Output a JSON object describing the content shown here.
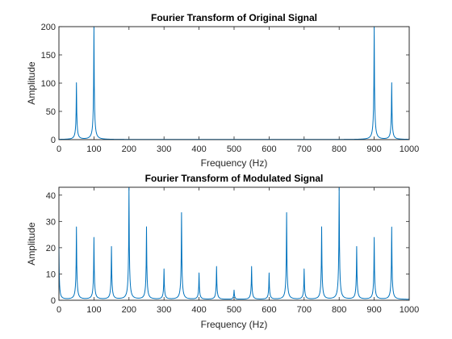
{
  "chart_data": [
    {
      "type": "line",
      "title": "Fourier Transform of Original Signal",
      "xlabel": "Frequency (Hz)",
      "ylabel": "Amplitude",
      "xlim": [
        0,
        1000
      ],
      "ylim": [
        0,
        200
      ],
      "xticks": [
        0,
        100,
        200,
        300,
        400,
        500,
        600,
        700,
        800,
        900,
        1000
      ],
      "yticks": [
        0,
        50,
        100,
        150,
        200
      ],
      "grid": false,
      "color": "#0072BD",
      "peaks": [
        {
          "x": 50,
          "y": 100
        },
        {
          "x": 100,
          "y": 200
        },
        {
          "x": 900,
          "y": 200
        },
        {
          "x": 950,
          "y": 100
        }
      ]
    },
    {
      "type": "line",
      "title": "Fourier Transform of Modulated Signal",
      "xlabel": "Frequency (Hz)",
      "ylabel": "Amplitude",
      "xlim": [
        0,
        1000
      ],
      "ylim": [
        0,
        43
      ],
      "xticks": [
        0,
        100,
        200,
        300,
        400,
        500,
        600,
        700,
        800,
        900,
        1000
      ],
      "yticks": [
        0,
        10,
        20,
        30,
        40
      ],
      "grid": false,
      "color": "#0072BD",
      "peaks": [
        {
          "x": 0,
          "y": 20
        },
        {
          "x": 50,
          "y": 27.5
        },
        {
          "x": 100,
          "y": 23.5
        },
        {
          "x": 150,
          "y": 20
        },
        {
          "x": 200,
          "y": 43
        },
        {
          "x": 250,
          "y": 27.5
        },
        {
          "x": 300,
          "y": 11.5
        },
        {
          "x": 350,
          "y": 33
        },
        {
          "x": 400,
          "y": 10
        },
        {
          "x": 450,
          "y": 12.5
        },
        {
          "x": 500,
          "y": 3.5
        },
        {
          "x": 550,
          "y": 12.5
        },
        {
          "x": 600,
          "y": 10
        },
        {
          "x": 650,
          "y": 33
        },
        {
          "x": 700,
          "y": 11.5
        },
        {
          "x": 750,
          "y": 27.5
        },
        {
          "x": 800,
          "y": 43
        },
        {
          "x": 850,
          "y": 20
        },
        {
          "x": 900,
          "y": 23.5
        },
        {
          "x": 950,
          "y": 27.5
        }
      ]
    }
  ]
}
